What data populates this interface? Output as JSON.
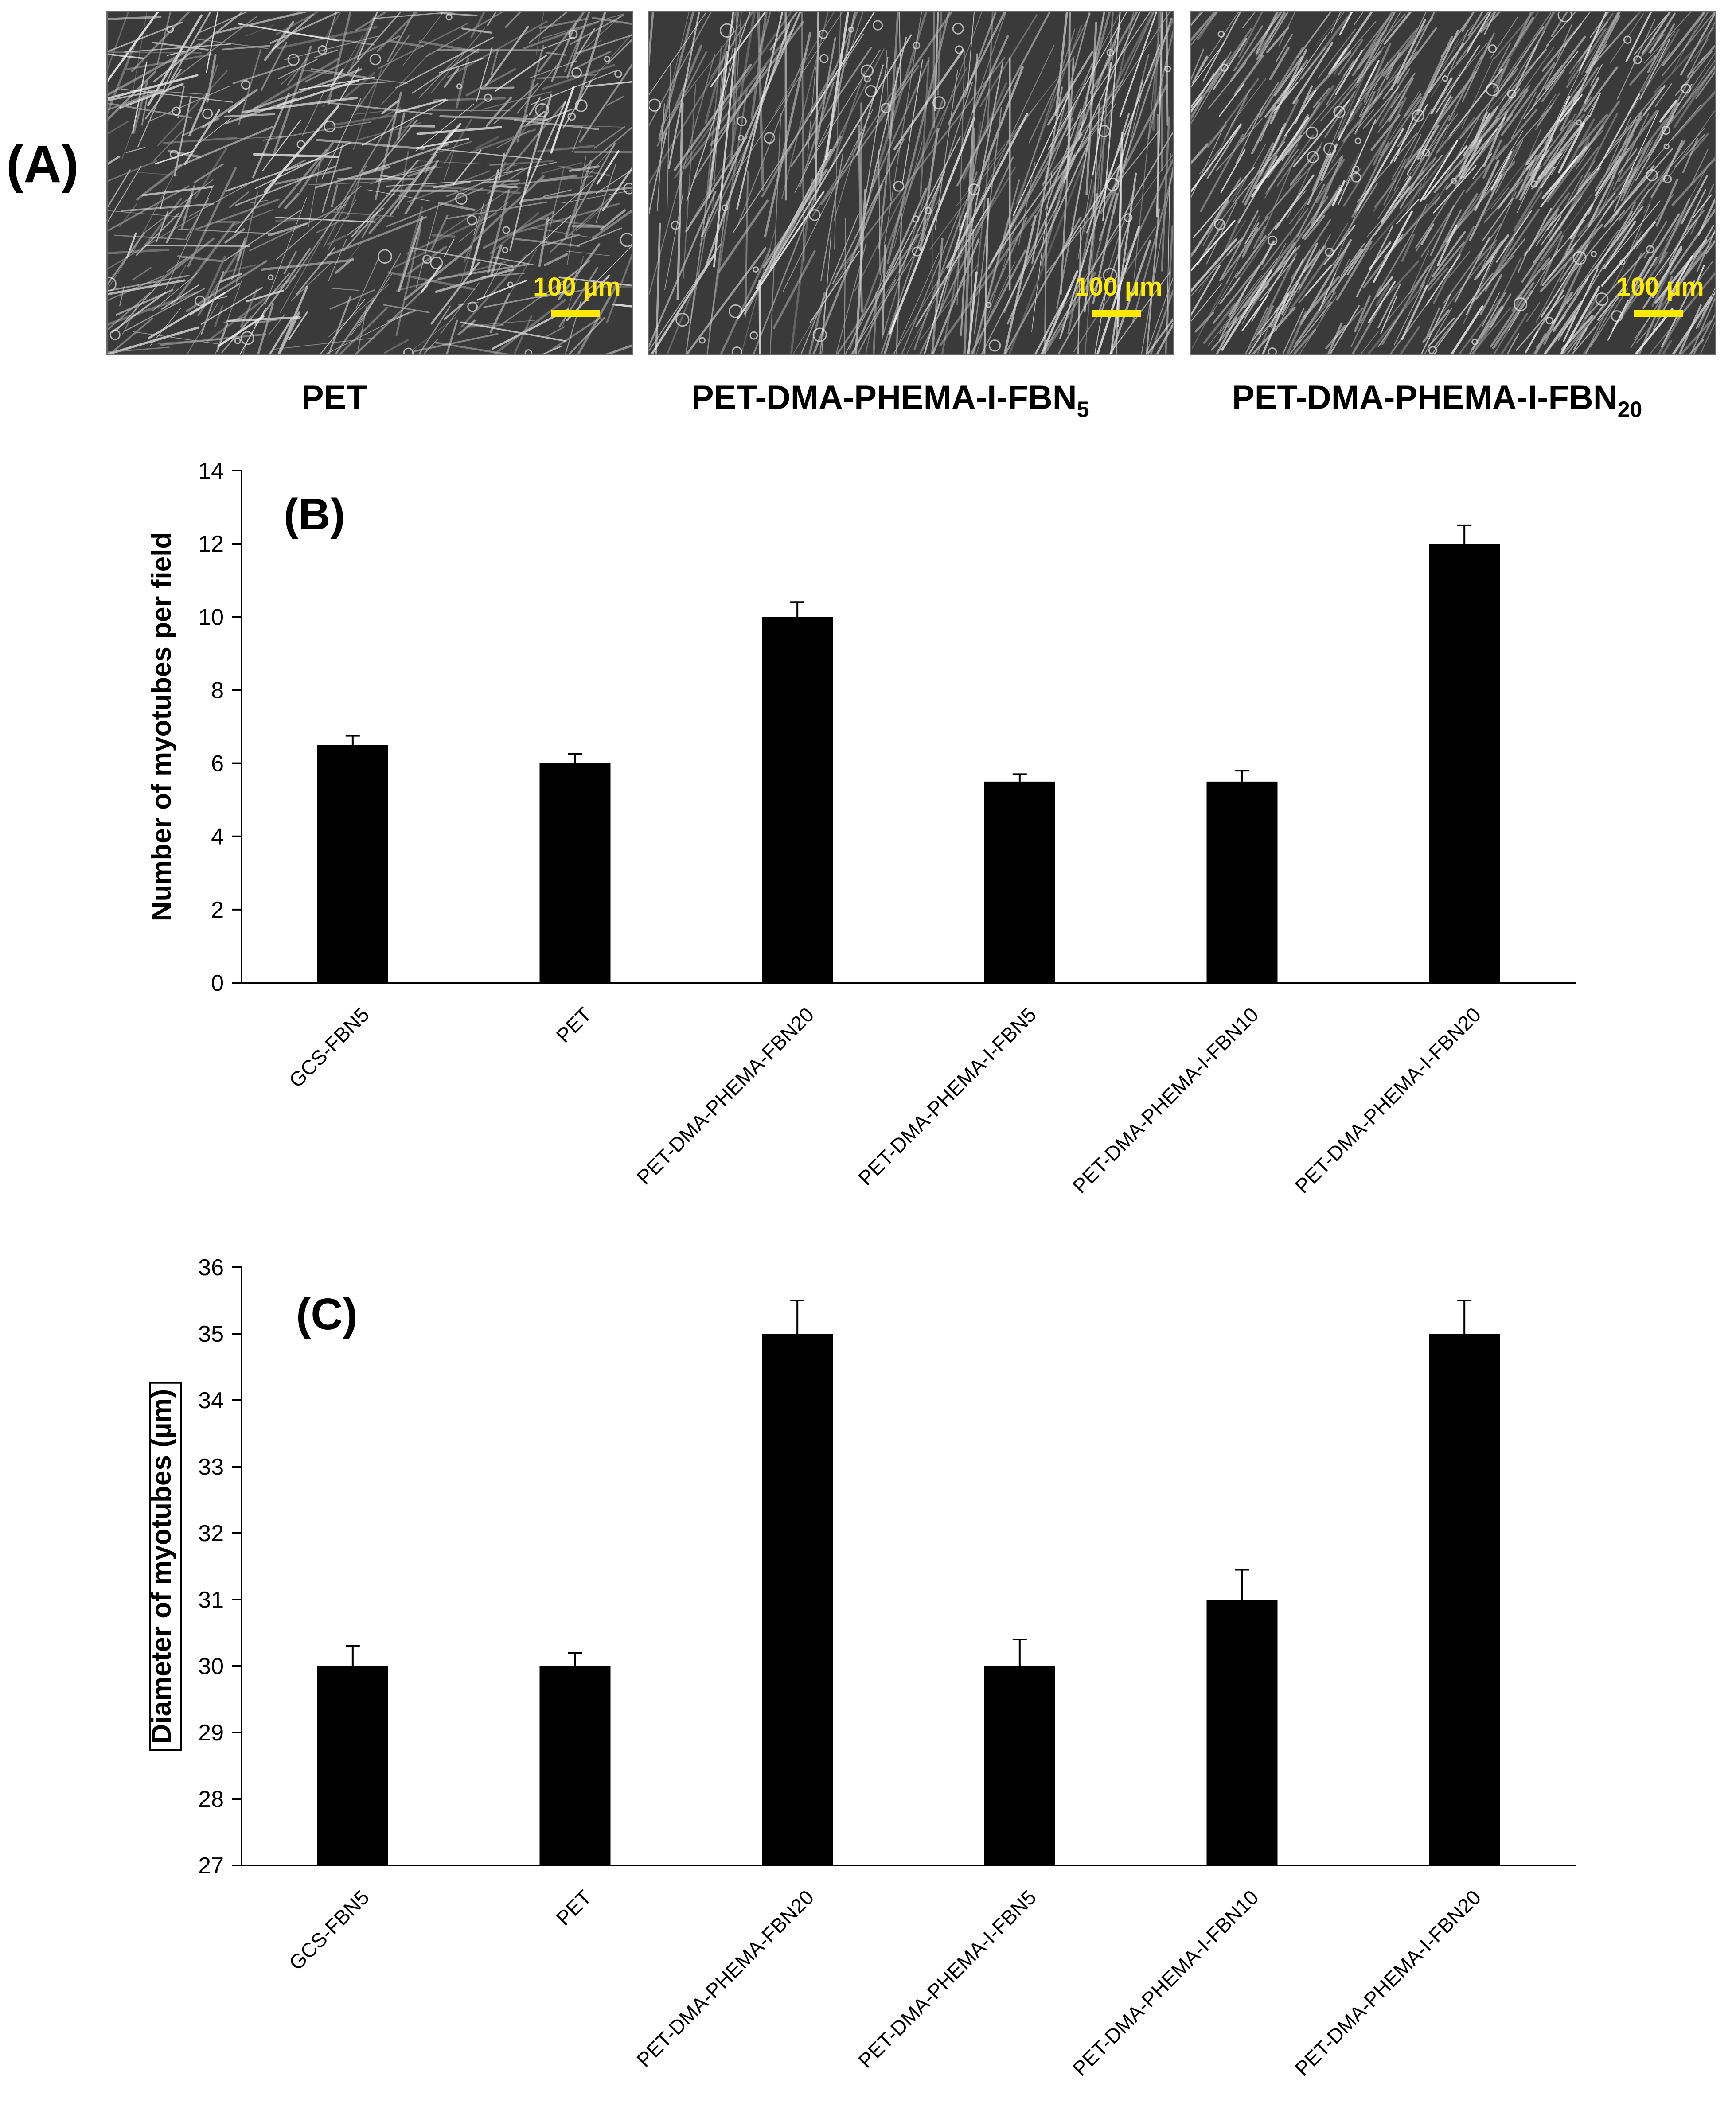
{
  "panel_a": {
    "letter": "(A)",
    "images": [
      {
        "caption_main": "PET",
        "caption_sub": "",
        "scale_label": "100 µm",
        "texture": "dense-crisscross"
      },
      {
        "caption_main": "PET-DMA-PHEMA-I-FBN",
        "caption_sub": "5",
        "scale_label": "100 µm",
        "texture": "long-myotubes"
      },
      {
        "caption_main": "PET-DMA-PHEMA-I-FBN",
        "caption_sub": "20",
        "scale_label": "100 µm",
        "texture": "aligned-dense"
      }
    ],
    "scale_color": "#ffea00"
  },
  "chart_data": [
    {
      "type": "bar",
      "panel": "(B)",
      "title": "",
      "xlabel": "",
      "ylabel": "Number of myotubes per field",
      "categories": [
        "GCS-FBN5",
        "PET",
        "PET-DMA-PHEMA-FBN20",
        "PET-DMA-PHEMA-I-FBN5",
        "PET-DMA-PHEMA-I-FBN10",
        "PET-DMA-PHEMA-I-FBN20"
      ],
      "values": [
        6.5,
        6.0,
        10.0,
        5.5,
        5.5,
        12.0
      ],
      "errors": [
        0.25,
        0.25,
        0.4,
        0.2,
        0.3,
        0.5
      ],
      "ylim": [
        0,
        14
      ],
      "yticks": [
        0,
        2,
        4,
        6,
        8,
        10,
        12,
        14
      ],
      "grid": false,
      "bar_color": "#000000"
    },
    {
      "type": "bar",
      "panel": "(C)",
      "title": "",
      "xlabel": "",
      "ylabel": "Diameter of myotubes (µm)",
      "categories": [
        "GCS-FBN5",
        "PET",
        "PET-DMA-PHEMA-FBN20",
        "PET-DMA-PHEMA-I-FBN5",
        "PET-DMA-PHEMA-I-FBN10",
        "PET-DMA-PHEMA-I-FBN20"
      ],
      "values": [
        30,
        30,
        35,
        30,
        31,
        35
      ],
      "errors": [
        0.3,
        0.2,
        0.5,
        0.4,
        0.45,
        0.5
      ],
      "ylim": [
        27,
        36
      ],
      "yticks": [
        27,
        28,
        29,
        30,
        31,
        32,
        33,
        34,
        35,
        36
      ],
      "grid": false,
      "ylabel_boxed": true,
      "bar_color": "#000000"
    }
  ]
}
